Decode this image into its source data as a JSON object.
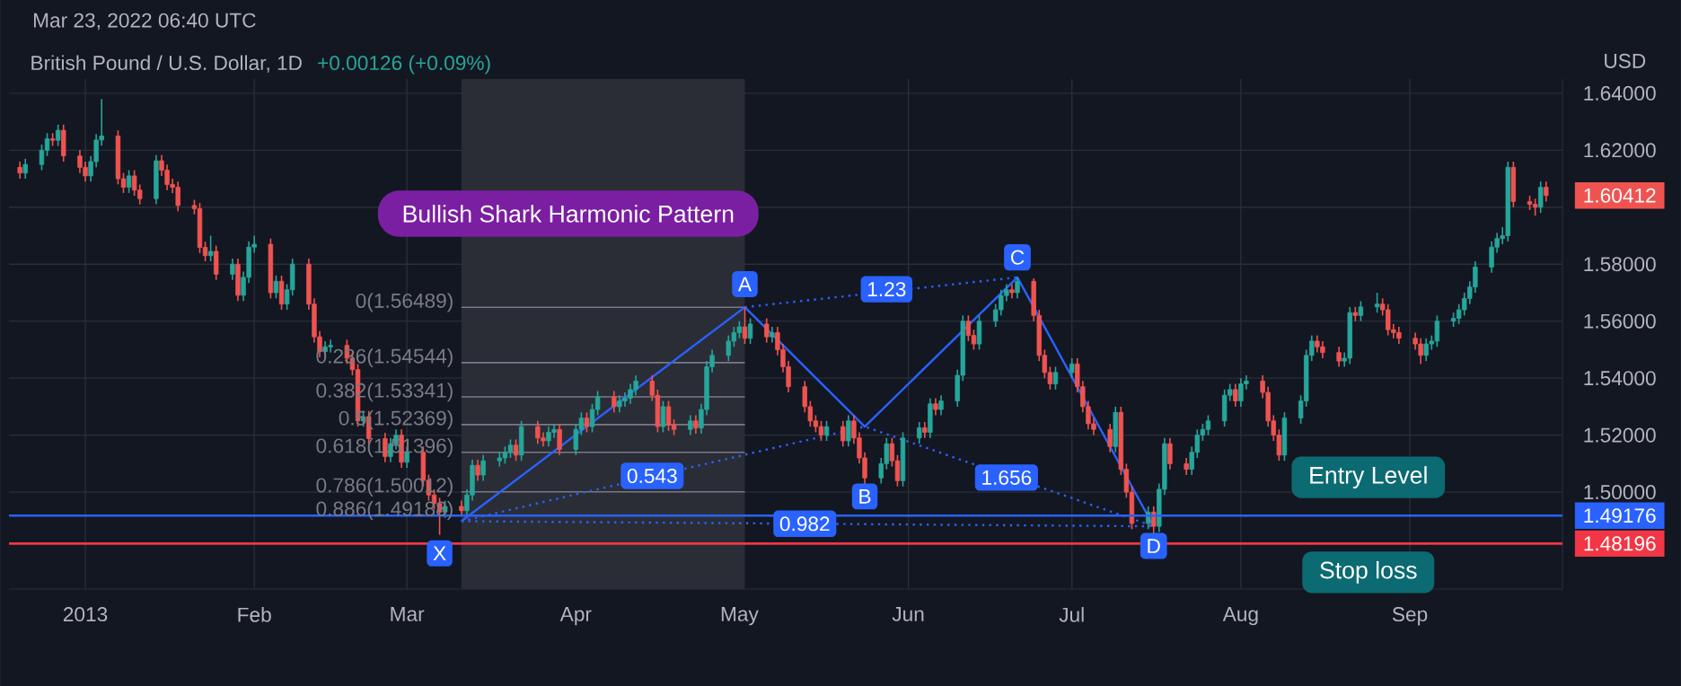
{
  "chart_data": {
    "type": "candlestick",
    "title": "British Pound / U.S. Dollar, 1D",
    "subtitle": "+0.00126 (+0.09%)",
    "ylabel": "USD",
    "grid": true,
    "xlim": [
      "2012-12-18",
      "2013-09-29"
    ],
    "ylim": [
      1.466,
      1.645
    ],
    "xticks": [
      {
        "value": "2013-01-01",
        "label": "2013"
      },
      {
        "value": "2013-02-01",
        "label": "Feb"
      },
      {
        "value": "2013-03-01",
        "label": "Mar"
      },
      {
        "value": "2013-04-01",
        "label": "Apr"
      },
      {
        "value": "2013-05-01",
        "label": "May"
      },
      {
        "value": "2013-06-01",
        "label": "Jun"
      },
      {
        "value": "2013-07-01",
        "label": "Jul"
      },
      {
        "value": "2013-08-01",
        "label": "Aug"
      },
      {
        "value": "2013-09-01",
        "label": "Sep"
      }
    ],
    "yticks": [
      {
        "value": 1.48196,
        "label": "1.48196"
      },
      {
        "value": 1.49176,
        "label": "1.49176"
      },
      {
        "value": 1.5,
        "label": "1.50000"
      },
      {
        "value": 1.52,
        "label": "1.52000"
      },
      {
        "value": 1.54,
        "label": "1.54000"
      },
      {
        "value": 1.56,
        "label": "1.56000"
      },
      {
        "value": 1.58,
        "label": "1.58000"
      },
      {
        "value": 1.6,
        "label": null
      },
      {
        "value": 1.60412,
        "label": "1.60412"
      },
      {
        "value": 1.62,
        "label": "1.62000"
      },
      {
        "value": 1.64,
        "label": "1.64000"
      }
    ],
    "ref_lines": [
      {
        "axis": "y",
        "value": 1.49176,
        "label": "Entry Level",
        "color": "#2962ff"
      },
      {
        "axis": "y",
        "value": 1.48196,
        "label": "Stop loss",
        "color": "#f23645"
      }
    ],
    "bands": [
      {
        "axis": "x",
        "from": "2013-03-11",
        "to": "2013-05-02",
        "color": "#2a2d36"
      }
    ],
    "series": [
      {
        "type": "line",
        "color": "#2962ff",
        "line_style": "solid",
        "x": [
          "2013-03-11",
          "2013-05-02",
          "2013-05-24",
          "2013-06-21",
          "2013-07-16"
        ],
        "values": [
          1.4898,
          1.5649,
          1.523,
          1.5754,
          1.488
        ]
      },
      {
        "type": "line",
        "color": "#2962ff",
        "line_style": "dotted",
        "x": [
          "2013-03-11",
          "2013-05-24",
          "2013-07-16"
        ],
        "values": [
          1.4898,
          1.523,
          1.488
        ]
      },
      {
        "type": "line",
        "color": "#2962ff",
        "line_style": "dotted",
        "x": [
          "2013-05-02",
          "2013-06-21"
        ],
        "values": [
          1.5649,
          1.5754
        ]
      },
      {
        "type": "line",
        "color": "#2962ff",
        "line_style": "dotted",
        "x": [
          "2013-03-11",
          "2013-07-16"
        ],
        "values": [
          1.4898,
          1.488
        ]
      }
    ],
    "annotations": [
      "Mar 23, 2022 06:40 UTC",
      "Bullish Shark Harmonic Pattern",
      {
        "text": "0(1.56489)",
        "x": "2013-03-11",
        "y": 1.56489
      },
      {
        "text": "0.236(1.54544)",
        "x": "2013-03-11",
        "y": 1.54544
      },
      {
        "text": "0.382(1.53341)",
        "x": "2013-03-11",
        "y": 1.53341
      },
      {
        "text": "0.5(1.52369)",
        "x": "2013-03-11",
        "y": 1.52369
      },
      {
        "text": "0.618(1.51396)",
        "x": "2013-03-11",
        "y": 1.51396
      },
      {
        "text": "0.786(1.50012)",
        "x": "2013-03-11",
        "y": 1.50012
      },
      {
        "text": "0.886(1.49188)",
        "x": "2013-03-11",
        "y": 1.49188
      },
      {
        "text": "X",
        "x": "2013-03-07",
        "y": 1.4785
      },
      {
        "text": "A",
        "x": "2013-05-02",
        "y": 1.573
      },
      {
        "text": "B",
        "x": "2013-05-24",
        "y": 1.4985
      },
      {
        "text": "C",
        "x": "2013-06-21",
        "y": 1.5824
      },
      {
        "text": "D",
        "x": "2013-07-16",
        "y": 1.4811
      },
      {
        "text": "1.23",
        "x": "2013-05-28",
        "y": 1.5712
      },
      {
        "text": "0.543",
        "x": "2013-04-15",
        "y": 1.5057
      },
      {
        "text": "1.656",
        "x": "2013-06-19",
        "y": 1.5051
      },
      {
        "text": "0.982",
        "x": "2013-05-13",
        "y": 1.4889
      }
    ],
    "x": [
      "2012-12-20",
      "2012-12-21",
      "2012-12-24",
      "2012-12-25",
      "2012-12-26",
      "2012-12-27",
      "2012-12-28",
      "2012-12-31",
      "2013-01-01",
      "2013-01-02",
      "2013-01-03",
      "2013-01-04",
      "2013-01-07",
      "2013-01-08",
      "2013-01-09",
      "2013-01-10",
      "2013-01-11",
      "2013-01-14",
      "2013-01-15",
      "2013-01-16",
      "2013-01-17",
      "2013-01-18",
      "2013-01-21",
      "2013-01-22",
      "2013-01-23",
      "2013-01-24",
      "2013-01-25",
      "2013-01-28",
      "2013-01-29",
      "2013-01-30",
      "2013-01-31",
      "2013-02-01",
      "2013-02-04",
      "2013-02-05",
      "2013-02-06",
      "2013-02-07",
      "2013-02-08",
      "2013-02-11",
      "2013-02-12",
      "2013-02-13",
      "2013-02-14",
      "2013-02-15",
      "2013-02-18",
      "2013-02-19",
      "2013-02-20",
      "2013-02-21",
      "2013-02-22",
      "2013-02-25",
      "2013-02-26",
      "2013-02-27",
      "2013-02-28",
      "2013-03-01",
      "2013-03-04",
      "2013-03-05",
      "2013-03-06",
      "2013-03-07",
      "2013-03-08",
      "2013-03-11",
      "2013-03-12",
      "2013-03-13",
      "2013-03-14",
      "2013-03-15",
      "2013-03-18",
      "2013-03-19",
      "2013-03-20",
      "2013-03-21",
      "2013-03-22",
      "2013-03-25",
      "2013-03-26",
      "2013-03-27",
      "2013-03-28",
      "2013-03-29",
      "2013-04-01",
      "2013-04-02",
      "2013-04-03",
      "2013-04-04",
      "2013-04-05",
      "2013-04-08",
      "2013-04-09",
      "2013-04-10",
      "2013-04-11",
      "2013-04-12",
      "2013-04-15",
      "2013-04-16",
      "2013-04-17",
      "2013-04-18",
      "2013-04-19",
      "2013-04-22",
      "2013-04-23",
      "2013-04-24",
      "2013-04-25",
      "2013-04-26",
      "2013-04-29",
      "2013-04-30",
      "2013-05-01",
      "2013-05-02",
      "2013-05-03",
      "2013-05-06",
      "2013-05-07",
      "2013-05-08",
      "2013-05-09",
      "2013-05-10",
      "2013-05-13",
      "2013-05-14",
      "2013-05-15",
      "2013-05-16",
      "2013-05-17",
      "2013-05-20",
      "2013-05-21",
      "2013-05-22",
      "2013-05-23",
      "2013-05-24",
      "2013-05-27",
      "2013-05-28",
      "2013-05-29",
      "2013-05-30",
      "2013-05-31",
      "2013-06-03",
      "2013-06-04",
      "2013-06-05",
      "2013-06-06",
      "2013-06-07",
      "2013-06-10",
      "2013-06-11",
      "2013-06-12",
      "2013-06-13",
      "2013-06-14",
      "2013-06-17",
      "2013-06-18",
      "2013-06-19",
      "2013-06-20",
      "2013-06-21",
      "2013-06-24",
      "2013-06-25",
      "2013-06-26",
      "2013-06-27",
      "2013-06-28",
      "2013-07-01",
      "2013-07-02",
      "2013-07-03",
      "2013-07-04",
      "2013-07-05",
      "2013-07-08",
      "2013-07-09",
      "2013-07-10",
      "2013-07-11",
      "2013-07-12",
      "2013-07-15",
      "2013-07-16",
      "2013-07-17",
      "2013-07-18",
      "2013-07-19",
      "2013-07-22",
      "2013-07-23",
      "2013-07-24",
      "2013-07-25",
      "2013-07-26",
      "2013-07-29",
      "2013-07-30",
      "2013-07-31",
      "2013-08-01",
      "2013-08-02",
      "2013-08-05",
      "2013-08-06",
      "2013-08-07",
      "2013-08-08",
      "2013-08-09",
      "2013-08-12",
      "2013-08-13",
      "2013-08-14",
      "2013-08-15",
      "2013-08-16",
      "2013-08-19",
      "2013-08-20",
      "2013-08-21",
      "2013-08-22",
      "2013-08-23",
      "2013-08-26",
      "2013-08-27",
      "2013-08-28",
      "2013-08-29",
      "2013-08-30",
      "2013-09-02",
      "2013-09-03",
      "2013-09-04",
      "2013-09-05",
      "2013-09-06",
      "2013-09-09",
      "2013-09-10",
      "2013-09-11",
      "2013-09-12",
      "2013-09-13",
      "2013-09-16",
      "2013-09-17",
      "2013-09-18",
      "2013-09-19",
      "2013-09-20",
      "2013-09-23",
      "2013-09-24",
      "2013-09-25",
      "2013-09-26"
    ],
    "ohlc": [
      [
        1.614,
        1.616,
        1.61,
        1.612
      ],
      [
        1.612,
        1.617,
        1.61,
        1.615
      ],
      [
        1.615,
        1.622,
        1.613,
        1.62
      ],
      [
        1.62,
        1.626,
        1.618,
        1.624
      ],
      [
        1.624,
        1.626,
        1.6215,
        1.6235
      ],
      [
        1.6235,
        1.629,
        1.6215,
        1.627
      ],
      [
        1.627,
        1.629,
        1.616,
        1.618
      ],
      [
        1.618,
        1.62,
        1.612,
        1.614
      ],
      [
        1.614,
        1.616,
        1.609,
        1.611
      ],
      [
        1.611,
        1.618,
        1.609,
        1.616
      ],
      [
        1.616,
        1.6256,
        1.614,
        1.6236
      ],
      [
        1.6236,
        1.638,
        1.6216,
        1.625
      ],
      [
        1.625,
        1.627,
        1.608,
        1.61
      ],
      [
        1.61,
        1.612,
        1.605,
        1.607
      ],
      [
        1.607,
        1.613,
        1.605,
        1.611
      ],
      [
        1.611,
        1.613,
        1.604,
        1.606
      ],
      [
        1.606,
        1.608,
        1.601,
        1.603
      ],
      [
        1.603,
        1.6183,
        1.601,
        1.6163
      ],
      [
        1.6163,
        1.6183,
        1.611,
        1.613
      ],
      [
        1.613,
        1.615,
        1.606,
        1.608
      ],
      [
        1.608,
        1.61,
        1.605,
        1.607
      ],
      [
        1.607,
        1.609,
        1.5986,
        1.6006
      ],
      [
        1.6006,
        1.6026,
        1.5975,
        1.5995
      ],
      [
        1.5995,
        1.6015,
        1.5839,
        1.5859
      ],
      [
        1.5859,
        1.5879,
        1.581,
        1.583
      ],
      [
        1.583,
        1.59,
        1.581,
        1.5845
      ],
      [
        1.5845,
        1.5865,
        1.5745,
        1.5765
      ],
      [
        1.5765,
        1.582,
        1.5745,
        1.58
      ],
      [
        1.58,
        1.582,
        1.5671,
        1.5691
      ],
      [
        1.5691,
        1.5774,
        1.5671,
        1.5754
      ],
      [
        1.5754,
        1.588,
        1.5734,
        1.586
      ],
      [
        1.586,
        1.59,
        1.584,
        1.587
      ],
      [
        1.587,
        1.589,
        1.568,
        1.57
      ],
      [
        1.57,
        1.576,
        1.568,
        1.574
      ],
      [
        1.574,
        1.576,
        1.564,
        1.566
      ],
      [
        1.566,
        1.573,
        1.564,
        1.571
      ],
      [
        1.571,
        1.582,
        1.569,
        1.58
      ],
      [
        1.58,
        1.582,
        1.564,
        1.566
      ],
      [
        1.566,
        1.568,
        1.5525,
        1.5545
      ],
      [
        1.5545,
        1.5565,
        1.5473,
        1.5493
      ],
      [
        1.5493,
        1.553,
        1.5473,
        1.551
      ],
      [
        1.551,
        1.5535,
        1.549,
        1.5515
      ],
      [
        1.5515,
        1.5535,
        1.545,
        1.547
      ],
      [
        1.547,
        1.549,
        1.541,
        1.543
      ],
      [
        1.543,
        1.545,
        1.523,
        1.525
      ],
      [
        1.525,
        1.5285,
        1.523,
        1.5265
      ],
      [
        1.5265,
        1.5285,
        1.5168,
        1.5188
      ],
      [
        1.5188,
        1.5208,
        1.5105,
        1.5125
      ],
      [
        1.5125,
        1.519,
        1.5105,
        1.517
      ],
      [
        1.517,
        1.522,
        1.515,
        1.52
      ],
      [
        1.52,
        1.522,
        1.5085,
        1.5105
      ],
      [
        1.5105,
        1.516,
        1.5085,
        1.514
      ],
      [
        1.514,
        1.516,
        1.5021,
        1.5041
      ],
      [
        1.5041,
        1.5061,
        1.497,
        1.499
      ],
      [
        1.499,
        1.501,
        1.494,
        1.496
      ],
      [
        1.496,
        1.498,
        1.485,
        1.493
      ],
      [
        1.493,
        1.497,
        1.491,
        1.495
      ],
      [
        1.495,
        1.497,
        1.4915,
        1.4935
      ],
      [
        1.4935,
        1.501,
        1.4915,
        1.499
      ],
      [
        1.499,
        1.5114,
        1.497,
        1.5094
      ],
      [
        1.5094,
        1.5114,
        1.504,
        1.506
      ],
      [
        1.506,
        1.513,
        1.504,
        1.511
      ],
      [
        1.511,
        1.514,
        1.509,
        1.512
      ],
      [
        1.512,
        1.516,
        1.51,
        1.514
      ],
      [
        1.514,
        1.5185,
        1.512,
        1.5165
      ],
      [
        1.5165,
        1.5185,
        1.511,
        1.513
      ],
      [
        1.513,
        1.525,
        1.511,
        1.523
      ],
      [
        1.523,
        1.525,
        1.517,
        1.519
      ],
      [
        1.519,
        1.521,
        1.516,
        1.518
      ],
      [
        1.518,
        1.523,
        1.516,
        1.521
      ],
      [
        1.521,
        1.524,
        1.519,
        1.522
      ],
      [
        1.522,
        1.524,
        1.513,
        1.515
      ],
      [
        1.515,
        1.524,
        1.513,
        1.522
      ],
      [
        1.522,
        1.528,
        1.52,
        1.526
      ],
      [
        1.526,
        1.528,
        1.521,
        1.523
      ],
      [
        1.523,
        1.531,
        1.521,
        1.529
      ],
      [
        1.529,
        1.5355,
        1.527,
        1.5335
      ],
      [
        1.5335,
        1.5355,
        1.528,
        1.53
      ],
      [
        1.53,
        1.534,
        1.528,
        1.532
      ],
      [
        1.532,
        1.535,
        1.53,
        1.533
      ],
      [
        1.533,
        1.538,
        1.531,
        1.536
      ],
      [
        1.536,
        1.541,
        1.534,
        1.539
      ],
      [
        1.539,
        1.541,
        1.532,
        1.534
      ],
      [
        1.534,
        1.536,
        1.521,
        1.523
      ],
      [
        1.523,
        1.532,
        1.521,
        1.53
      ],
      [
        1.53,
        1.532,
        1.5215,
        1.5235
      ],
      [
        1.5235,
        1.5255,
        1.52,
        1.522
      ],
      [
        1.522,
        1.527,
        1.52,
        1.525
      ],
      [
        1.525,
        1.527,
        1.5205,
        1.5225
      ],
      [
        1.5225,
        1.531,
        1.5205,
        1.529
      ],
      [
        1.529,
        1.546,
        1.527,
        1.544
      ],
      [
        1.544,
        1.55,
        1.542,
        1.548
      ],
      [
        1.548,
        1.555,
        1.546,
        1.553
      ],
      [
        1.553,
        1.558,
        1.551,
        1.556
      ],
      [
        1.556,
        1.56,
        1.554,
        1.558
      ],
      [
        1.558,
        1.5649,
        1.552,
        1.554
      ],
      [
        1.554,
        1.561,
        1.552,
        1.559
      ],
      [
        1.559,
        1.561,
        1.5525,
        1.5545
      ],
      [
        1.5545,
        1.558,
        1.5525,
        1.556
      ],
      [
        1.556,
        1.558,
        1.548,
        1.55
      ],
      [
        1.55,
        1.552,
        1.542,
        1.544
      ],
      [
        1.544,
        1.546,
        1.535,
        1.537
      ],
      [
        1.537,
        1.539,
        1.528,
        1.53
      ],
      [
        1.53,
        1.532,
        1.523,
        1.525
      ],
      [
        1.525,
        1.527,
        1.521,
        1.523
      ],
      [
        1.523,
        1.525,
        1.518,
        1.52
      ],
      [
        1.52,
        1.525,
        1.518,
        1.523
      ],
      [
        1.523,
        1.525,
        1.516,
        1.518
      ],
      [
        1.518,
        1.527,
        1.516,
        1.525
      ],
      [
        1.525,
        1.527,
        1.517,
        1.519
      ],
      [
        1.519,
        1.521,
        1.51,
        1.512
      ],
      [
        1.512,
        1.514,
        1.5025,
        1.505
      ],
      [
        1.505,
        1.512,
        1.503,
        1.51
      ],
      [
        1.51,
        1.519,
        1.508,
        1.517
      ],
      [
        1.517,
        1.519,
        1.509,
        1.511
      ],
      [
        1.511,
        1.513,
        1.502,
        1.504
      ],
      [
        1.504,
        1.521,
        1.502,
        1.519
      ],
      [
        1.519,
        1.5246,
        1.517,
        1.5226
      ],
      [
        1.5226,
        1.5246,
        1.519,
        1.521
      ],
      [
        1.521,
        1.533,
        1.519,
        1.531
      ],
      [
        1.531,
        1.533,
        1.527,
        1.529
      ],
      [
        1.529,
        1.534,
        1.527,
        1.532
      ],
      [
        1.532,
        1.543,
        1.53,
        1.541
      ],
      [
        1.541,
        1.562,
        1.539,
        1.56
      ],
      [
        1.56,
        1.562,
        1.553,
        1.555
      ],
      [
        1.555,
        1.557,
        1.55,
        1.552
      ],
      [
        1.552,
        1.562,
        1.55,
        1.56
      ],
      [
        1.56,
        1.566,
        1.558,
        1.564
      ],
      [
        1.564,
        1.571,
        1.562,
        1.569
      ],
      [
        1.569,
        1.573,
        1.567,
        1.571
      ],
      [
        1.571,
        1.573,
        1.568,
        1.57
      ],
      [
        1.57,
        1.5754,
        1.568,
        1.574
      ],
      [
        1.574,
        1.575,
        1.56,
        1.562
      ],
      [
        1.562,
        1.564,
        1.546,
        1.548
      ],
      [
        1.548,
        1.55,
        1.54,
        1.542
      ],
      [
        1.542,
        1.544,
        1.536,
        1.538
      ],
      [
        1.538,
        1.544,
        1.536,
        1.542
      ],
      [
        1.542,
        1.547,
        1.54,
        1.545
      ],
      [
        1.545,
        1.547,
        1.535,
        1.537
      ],
      [
        1.537,
        1.539,
        1.528,
        1.53
      ],
      [
        1.53,
        1.532,
        1.522,
        1.524
      ],
      [
        1.524,
        1.526,
        1.52,
        1.522
      ],
      [
        1.522,
        1.524,
        1.514,
        1.516
      ],
      [
        1.516,
        1.53,
        1.514,
        1.528
      ],
      [
        1.528,
        1.53,
        1.506,
        1.508
      ],
      [
        1.508,
        1.51,
        1.498,
        1.5
      ],
      [
        1.5,
        1.502,
        1.487,
        1.489
      ],
      [
        1.489,
        1.495,
        1.487,
        1.493
      ],
      [
        1.493,
        1.495,
        1.4855,
        1.488
      ],
      [
        1.488,
        1.503,
        1.486,
        1.501
      ],
      [
        1.501,
        1.519,
        1.499,
        1.517
      ],
      [
        1.517,
        1.519,
        1.508,
        1.51
      ],
      [
        1.51,
        1.512,
        1.506,
        1.508
      ],
      [
        1.508,
        1.516,
        1.506,
        1.514
      ],
      [
        1.514,
        1.522,
        1.512,
        1.52
      ],
      [
        1.52,
        1.524,
        1.518,
        1.522
      ],
      [
        1.522,
        1.527,
        1.52,
        1.525
      ],
      [
        1.525,
        1.536,
        1.523,
        1.534
      ],
      [
        1.534,
        1.538,
        1.532,
        1.536
      ],
      [
        1.536,
        1.538,
        1.53,
        1.532
      ],
      [
        1.532,
        1.54,
        1.53,
        1.538
      ],
      [
        1.538,
        1.541,
        1.536,
        1.539
      ],
      [
        1.539,
        1.541,
        1.533,
        1.535
      ],
      [
        1.535,
        1.537,
        1.523,
        1.525
      ],
      [
        1.525,
        1.527,
        1.518,
        1.52
      ],
      [
        1.52,
        1.522,
        1.511,
        1.513
      ],
      [
        1.513,
        1.528,
        1.511,
        1.526
      ],
      [
        1.526,
        1.534,
        1.524,
        1.532
      ],
      [
        1.532,
        1.55,
        1.53,
        1.548
      ],
      [
        1.548,
        1.555,
        1.546,
        1.553
      ],
      [
        1.553,
        1.555,
        1.549,
        1.551
      ],
      [
        1.551,
        1.553,
        1.547,
        1.549
      ],
      [
        1.549,
        1.551,
        1.544,
        1.546
      ],
      [
        1.546,
        1.549,
        1.544,
        1.547
      ],
      [
        1.547,
        1.565,
        1.545,
        1.563
      ],
      [
        1.563,
        1.565,
        1.56,
        1.562
      ],
      [
        1.562,
        1.567,
        1.56,
        1.565
      ],
      [
        1.565,
        1.57,
        1.563,
        1.566
      ],
      [
        1.566,
        1.568,
        1.562,
        1.564
      ],
      [
        1.564,
        1.566,
        1.555,
        1.557
      ],
      [
        1.557,
        1.559,
        1.554,
        1.556
      ],
      [
        1.556,
        1.558,
        1.552,
        1.554
      ],
      [
        1.554,
        1.556,
        1.55,
        1.552
      ],
      [
        1.552,
        1.554,
        1.545,
        1.548
      ],
      [
        1.548,
        1.554,
        1.546,
        1.552
      ],
      [
        1.552,
        1.555,
        1.55,
        1.553
      ],
      [
        1.553,
        1.562,
        1.551,
        1.56
      ],
      [
        1.56,
        1.563,
        1.558,
        1.561
      ],
      [
        1.561,
        1.566,
        1.559,
        1.564
      ],
      [
        1.564,
        1.57,
        1.562,
        1.568
      ],
      [
        1.568,
        1.574,
        1.566,
        1.572
      ],
      [
        1.572,
        1.581,
        1.57,
        1.579
      ],
      [
        1.579,
        1.588,
        1.577,
        1.586
      ],
      [
        1.586,
        1.591,
        1.584,
        1.589
      ],
      [
        1.589,
        1.593,
        1.587,
        1.59
      ],
      [
        1.59,
        1.616,
        1.588,
        1.614
      ],
      [
        1.614,
        1.616,
        1.6,
        1.602
      ],
      [
        1.602,
        1.604,
        1.599,
        1.601
      ],
      [
        1.601,
        1.603,
        1.597,
        1.6
      ],
      [
        1.6,
        1.609,
        1.598,
        1.607
      ],
      [
        1.607,
        1.609,
        1.602,
        1.60412
      ]
    ]
  }
}
